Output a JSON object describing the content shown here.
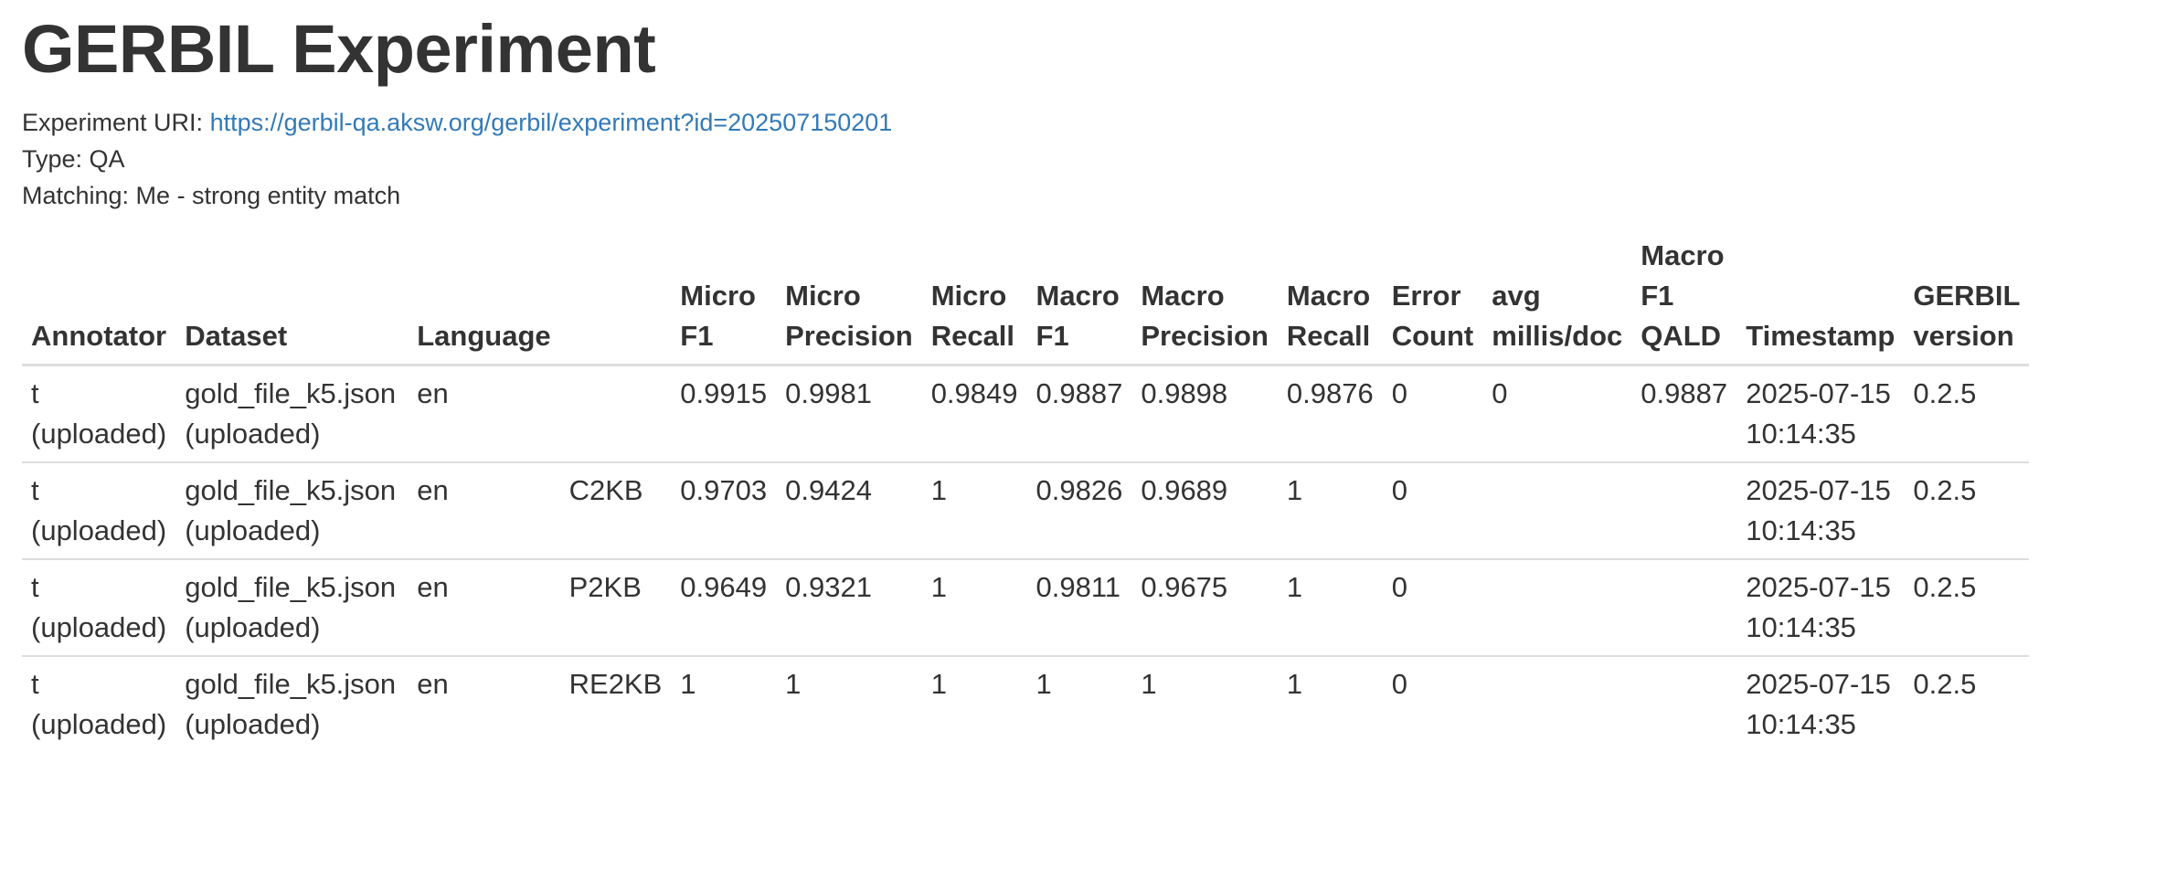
{
  "page": {
    "title": "GERBIL Experiment",
    "uri_label": "Experiment URI:",
    "uri": "https://gerbil-qa.aksw.org/gerbil/experiment?id=202507150201",
    "type": "Type: QA",
    "matching": "Matching: Me - strong entity match"
  },
  "table": {
    "headers": [
      [
        "Annotator"
      ],
      [
        "Dataset"
      ],
      [
        "Language"
      ],
      [
        ""
      ],
      [
        "Micro",
        "F1"
      ],
      [
        "Micro",
        "Precision"
      ],
      [
        "Micro",
        "Recall"
      ],
      [
        "Macro",
        "F1"
      ],
      [
        "Macro",
        "Precision"
      ],
      [
        "Macro",
        "Recall"
      ],
      [
        "Error",
        "Count"
      ],
      [
        "avg",
        "millis/doc"
      ],
      [
        "Macro",
        "F1",
        "QALD"
      ],
      [
        "Timestamp"
      ],
      [
        "GERBIL",
        "version"
      ]
    ],
    "rows": [
      [
        [
          "t",
          "(uploaded)"
        ],
        [
          "gold_file_k5.json",
          "(uploaded)"
        ],
        [
          "en"
        ],
        [
          ""
        ],
        [
          "0.9915"
        ],
        [
          "0.9981"
        ],
        [
          "0.9849"
        ],
        [
          "0.9887"
        ],
        [
          "0.9898"
        ],
        [
          "0.9876"
        ],
        [
          "0"
        ],
        [
          "0"
        ],
        [
          "0.9887"
        ],
        [
          "2025-07-15",
          "10:14:35"
        ],
        [
          "0.2.5"
        ]
      ],
      [
        [
          "t",
          "(uploaded)"
        ],
        [
          "gold_file_k5.json",
          "(uploaded)"
        ],
        [
          "en"
        ],
        [
          "C2KB"
        ],
        [
          "0.9703"
        ],
        [
          "0.9424"
        ],
        [
          "1"
        ],
        [
          "0.9826"
        ],
        [
          "0.9689"
        ],
        [
          "1"
        ],
        [
          "0"
        ],
        [
          ""
        ],
        [
          ""
        ],
        [
          "2025-07-15",
          "10:14:35"
        ],
        [
          "0.2.5"
        ]
      ],
      [
        [
          "t",
          "(uploaded)"
        ],
        [
          "gold_file_k5.json",
          "(uploaded)"
        ],
        [
          "en"
        ],
        [
          "P2KB"
        ],
        [
          "0.9649"
        ],
        [
          "0.9321"
        ],
        [
          "1"
        ],
        [
          "0.9811"
        ],
        [
          "0.9675"
        ],
        [
          "1"
        ],
        [
          "0"
        ],
        [
          ""
        ],
        [
          ""
        ],
        [
          "2025-07-15",
          "10:14:35"
        ],
        [
          "0.2.5"
        ]
      ],
      [
        [
          "t",
          "(uploaded)"
        ],
        [
          "gold_file_k5.json",
          "(uploaded)"
        ],
        [
          "en"
        ],
        [
          "RE2KB"
        ],
        [
          "1"
        ],
        [
          "1"
        ],
        [
          "1"
        ],
        [
          "1"
        ],
        [
          "1"
        ],
        [
          "1"
        ],
        [
          "0"
        ],
        [
          ""
        ],
        [
          ""
        ],
        [
          "2025-07-15",
          "10:14:35"
        ],
        [
          "0.2.5"
        ]
      ]
    ]
  }
}
